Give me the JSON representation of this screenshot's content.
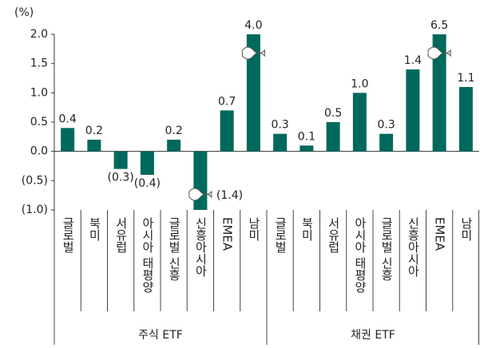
{
  "chart_data": {
    "type": "bar",
    "y_unit": "(%)",
    "color": "#00695c",
    "ylim": [
      -1,
      2
    ],
    "yticks": [
      {
        "value": 2,
        "label": "2.0"
      },
      {
        "value": 1.5,
        "label": "1.5"
      },
      {
        "value": 1,
        "label": "1.0"
      },
      {
        "value": 0.5,
        "label": "0.5"
      },
      {
        "value": 0,
        "label": "0.0"
      },
      {
        "value": -0.5,
        "label": "(0.5)"
      },
      {
        "value": -1,
        "label": "(1.0)"
      }
    ],
    "groups": [
      {
        "label": "주식 ETF",
        "categories": [
          "글로벌",
          "북미",
          "서유럽",
          "아시아 태평양",
          "글로벌 신흥",
          "신흥아시아",
          "EMEA",
          "남미"
        ],
        "values": [
          0.4,
          0.2,
          -0.3,
          -0.4,
          0.2,
          -1.4,
          0.7,
          4.0
        ],
        "value_labels": [
          "0.4",
          "0.2",
          "(0.3)",
          "(0.4)",
          "0.2",
          "(1.4)",
          "0.7",
          "4.0"
        ]
      },
      {
        "label": "채권 ETF",
        "categories": [
          "글로벌",
          "북미",
          "서유럽",
          "아시아 태평양",
          "글로벌 신흥",
          "신흥아시아",
          "EMEA",
          "남미"
        ],
        "values": [
          0.3,
          0.1,
          0.5,
          1.0,
          0.3,
          1.4,
          6.5,
          1.1
        ],
        "value_labels": [
          "0.3",
          "0.1",
          "0.5",
          "1.0",
          "0.3",
          "1.4",
          "6.5",
          "1.1"
        ]
      }
    ]
  }
}
